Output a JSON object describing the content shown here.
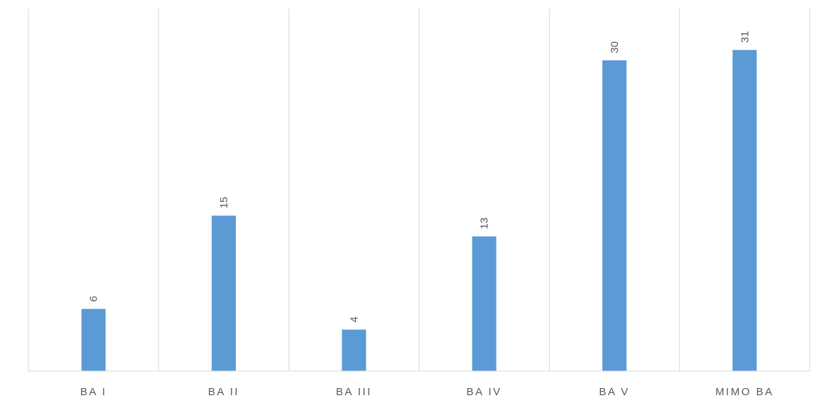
{
  "chart_data": {
    "type": "bar",
    "categories": [
      "BA I",
      "BA II",
      "BA III",
      "BA IV",
      "BA V",
      "MIMO BA"
    ],
    "values": [
      6,
      15,
      4,
      13,
      30,
      31
    ],
    "title": "",
    "xlabel": "",
    "ylabel": "",
    "ylim": [
      0,
      35
    ],
    "grid": "vertical category dividers",
    "legend": "none",
    "data_labels": "rotated above bars",
    "bar_color": "#5b9bd5",
    "axis_color": "#d9d9d9",
    "text_color": "#595959"
  }
}
